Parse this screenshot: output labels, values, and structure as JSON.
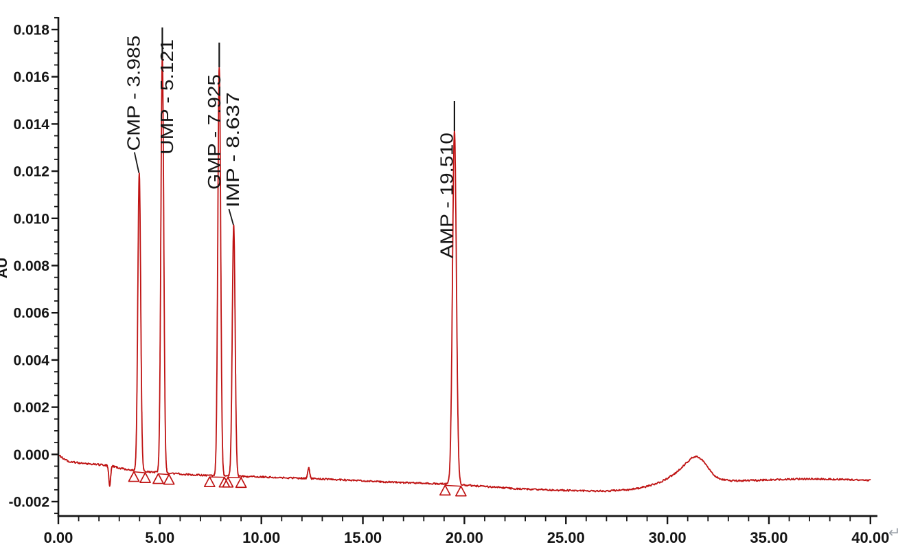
{
  "chart_data": {
    "type": "line",
    "subtype": "chromatogram",
    "title": "",
    "xlabel": "",
    "ylabel": "AU",
    "xlim": [
      0,
      40
    ],
    "ylim": [
      -0.002,
      0.018
    ],
    "grid": false,
    "legend": "none",
    "trace_color": "#bf1313",
    "axis_color": "#151515",
    "x_major_ticks": [
      0,
      5,
      10,
      15,
      20,
      25,
      30,
      35,
      40
    ],
    "x_tick_labels": [
      "0.00",
      "5.00",
      "10.00",
      "15.00",
      "20.00",
      "25.00",
      "30.00",
      "35.00",
      "40.00"
    ],
    "x_minor_step": 1,
    "y_major_ticks": [
      0.018,
      0.016,
      0.014,
      0.012,
      0.01,
      0.008,
      0.006,
      0.004,
      0.002,
      0.0,
      -0.002
    ],
    "y_tick_labels": [
      "0.018",
      "0.016",
      "0.014",
      "0.012",
      "0.010",
      "0.008",
      "0.006",
      "0.004",
      "0.002",
      "0.000",
      "-0.002"
    ],
    "y_minor_step": 0.0005,
    "peaks": [
      {
        "name": "CMP",
        "rt": 3.985,
        "label": "CMP - 3.985",
        "apex_au": 0.0119,
        "sigma_min": 0.07,
        "integ_start": 3.72,
        "integ_end": 4.28
      },
      {
        "name": "UMP",
        "rt": 5.121,
        "label": "UMP - 5.121",
        "apex_au": 0.0168,
        "sigma_min": 0.07,
        "integ_start": 4.92,
        "integ_end": 5.45
      },
      {
        "name": "GMP",
        "rt": 7.925,
        "label": "GMP - 7.925",
        "apex_au": 0.0164,
        "sigma_min": 0.07,
        "integ_start": 7.45,
        "integ_end": 8.18
      },
      {
        "name": "IMP",
        "rt": 8.637,
        "label": "IMP - 8.637",
        "apex_au": 0.0097,
        "sigma_min": 0.07,
        "integ_start": 8.35,
        "integ_end": 9.0
      },
      {
        "name": "AMP",
        "rt": 19.51,
        "label": "AMP - 19.510",
        "apex_au": 0.0137,
        "sigma_min": 0.095,
        "integ_start": 19.05,
        "integ_end": 19.83
      }
    ],
    "unlabeled_features": [
      {
        "type": "dip",
        "rt": 2.53,
        "au_delta": -0.00085,
        "sigma_min": 0.045
      },
      {
        "type": "blip",
        "rt": 12.33,
        "au_delta": 0.00045,
        "sigma_min": 0.05
      }
    ],
    "baseline_points": [
      [
        0,
        0
      ],
      [
        0.15,
        -0.00012
      ],
      [
        0.5,
        -0.0003
      ],
      [
        1.0,
        -0.00036
      ],
      [
        1.8,
        -0.00042
      ],
      [
        2.6,
        -0.00048
      ],
      [
        3.0,
        -0.00058
      ],
      [
        3.5,
        -0.00066
      ],
      [
        4.5,
        -0.00074
      ],
      [
        5.5,
        -0.0008
      ],
      [
        6.5,
        -0.00086
      ],
      [
        7.5,
        -0.0009
      ],
      [
        8.5,
        -0.00092
      ],
      [
        9.5,
        -0.00094
      ],
      [
        10.5,
        -0.00097
      ],
      [
        11.5,
        -0.001
      ],
      [
        12.5,
        -0.00103
      ],
      [
        13.5,
        -0.00106
      ],
      [
        15,
        -0.00112
      ],
      [
        16.5,
        -0.00118
      ],
      [
        18,
        -0.00122
      ],
      [
        19.5,
        -0.00127
      ],
      [
        21,
        -0.00136
      ],
      [
        22.5,
        -0.00145
      ],
      [
        24,
        -0.0015
      ],
      [
        25.5,
        -0.00154
      ],
      [
        27,
        -0.00155
      ],
      [
        28.2,
        -0.00149
      ],
      [
        29,
        -0.00136
      ],
      [
        29.7,
        -0.00116
      ],
      [
        30.3,
        -0.00086
      ],
      [
        30.8,
        -0.00048
      ],
      [
        31.15,
        -0.00018
      ],
      [
        31.4,
        -8e-05
      ],
      [
        31.65,
        -0.00018
      ],
      [
        31.95,
        -0.0005
      ],
      [
        32.25,
        -0.00085
      ],
      [
        32.6,
        -0.00105
      ],
      [
        33.2,
        -0.00112
      ],
      [
        34,
        -0.00111
      ],
      [
        35.5,
        -0.00106
      ],
      [
        37,
        -0.00104
      ],
      [
        38.5,
        -0.00106
      ],
      [
        40,
        -0.0011
      ]
    ]
  },
  "annotations": {
    "return_mark": "↵"
  }
}
